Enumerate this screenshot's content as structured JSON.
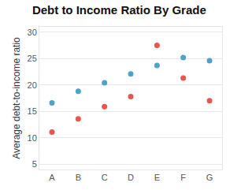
{
  "chart_data": {
    "type": "scatter",
    "title": "Debt to Income Ratio By Grade",
    "y_label": "Average debt-to-income ratio",
    "categories": [
      "A",
      "B",
      "C",
      "D",
      "E",
      "F",
      "G"
    ],
    "series": [
      {
        "color": "#4ea3c8",
        "values": [
          16.6,
          18.8,
          20.4,
          22.1,
          23.7,
          25.2,
          24.6
        ]
      },
      {
        "color": "#e8564f",
        "values": [
          11.1,
          13.6,
          15.9,
          17.8,
          27.5,
          21.3,
          17.0
        ]
      }
    ],
    "ylim": [
      4,
      31
    ],
    "yticks": [
      5,
      10,
      15,
      20,
      25,
      30
    ],
    "grid": true,
    "marker": "circle"
  }
}
